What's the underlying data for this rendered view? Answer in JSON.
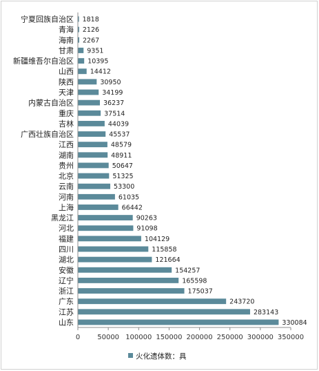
{
  "chart_data": {
    "type": "bar",
    "orientation": "horizontal",
    "categories": [
      "宁夏回族自治区",
      "青海",
      "海南",
      "甘肃",
      "新疆维吾尔自治区",
      "山西",
      "陕西",
      "天津",
      "内蒙古自治区",
      "重庆",
      "吉林",
      "广西壮族自治区",
      "江西",
      "湖南",
      "贵州",
      "北京",
      "云南",
      "河南",
      "上海",
      "黑龙江",
      "河北",
      "福建",
      "四川",
      "湖北",
      "安徽",
      "辽宁",
      "浙江",
      "广东",
      "江苏",
      "山东"
    ],
    "series": [
      {
        "name": "火化遗体数：具",
        "values": [
          1818,
          2126,
          2267,
          9351,
          10395,
          14412,
          30950,
          34199,
          36237,
          37514,
          44039,
          45537,
          48579,
          48911,
          50647,
          51325,
          53300,
          61035,
          66442,
          90263,
          91098,
          104129,
          115858,
          121664,
          154257,
          165598,
          175037,
          243720,
          283143,
          330084
        ]
      }
    ],
    "x_ticks": [
      "0",
      "50000",
      "100000",
      "150000",
      "200000",
      "250000",
      "300000",
      "350000"
    ],
    "xlim": [
      0,
      350000
    ],
    "grid": false,
    "data_labels": true,
    "legend_position": "bottom",
    "bar_color": "#5b8a9a"
  }
}
